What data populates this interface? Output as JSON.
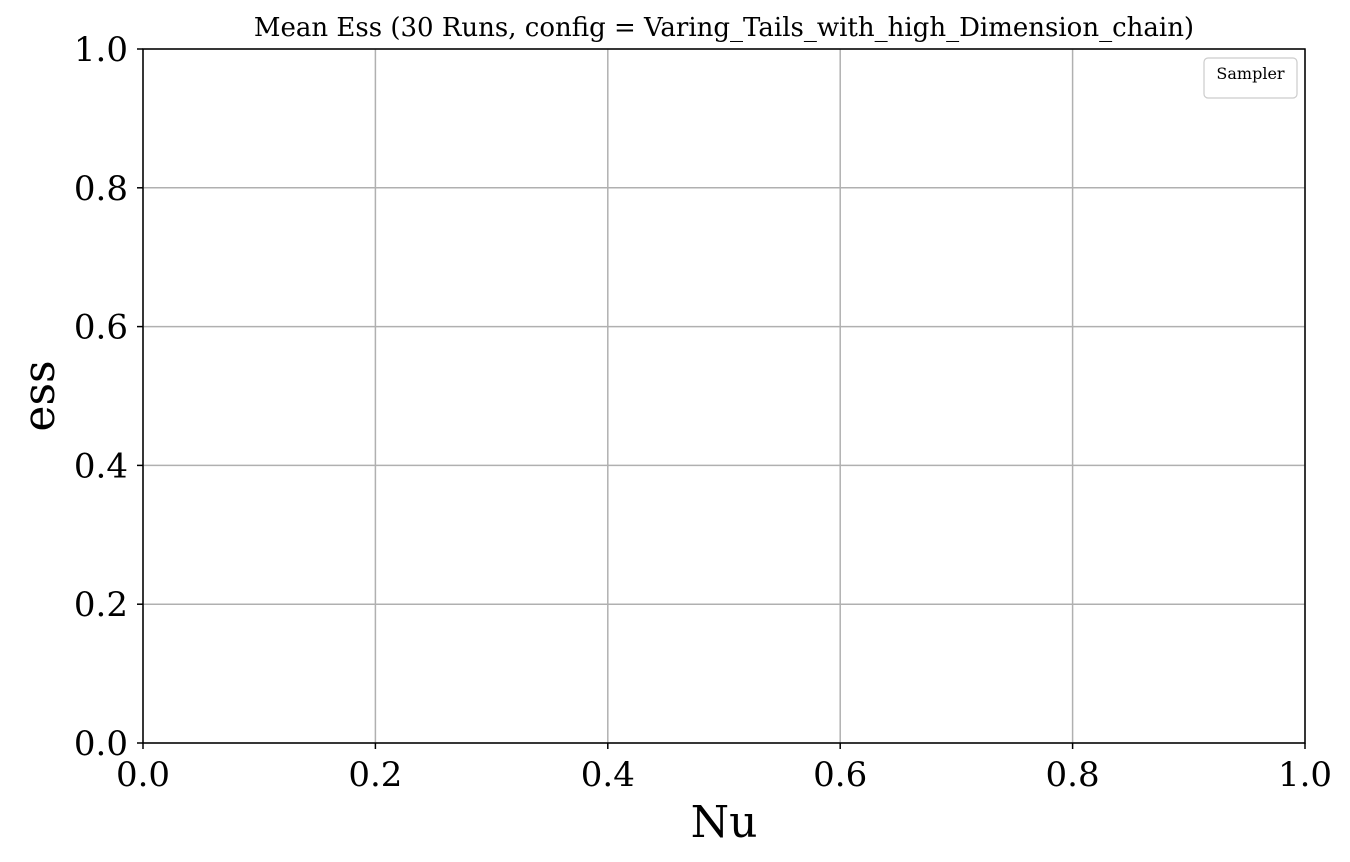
{
  "chart_data": {
    "type": "line",
    "title": "Mean Ess (30 Runs, config = Varing_Tails_with_high_Dimension_chain)",
    "xlabel": "Nu",
    "ylabel": "ess",
    "xlim": [
      0.0,
      1.0
    ],
    "ylim": [
      0.0,
      1.0
    ],
    "xticks": [
      "0.0",
      "0.2",
      "0.4",
      "0.6",
      "0.8",
      "1.0"
    ],
    "yticks": [
      "0.0",
      "0.2",
      "0.4",
      "0.6",
      "0.8",
      "1.0"
    ],
    "grid": true,
    "legend": {
      "title": "Sampler",
      "placement": "top-right",
      "entries": []
    },
    "series": []
  }
}
